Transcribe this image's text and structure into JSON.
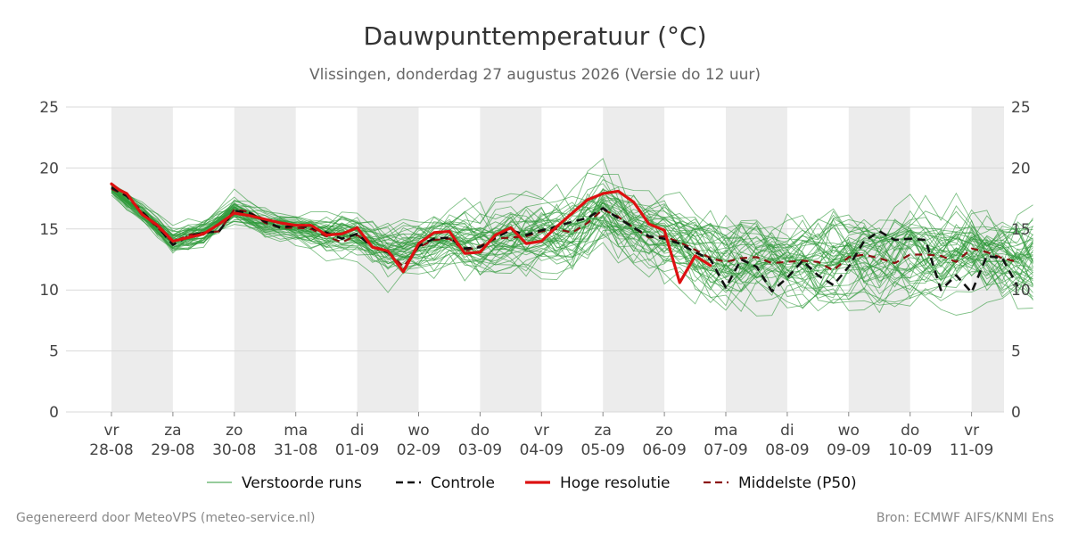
{
  "chart_data": {
    "type": "line",
    "title": "Dauwpunttemperatuur (°C)",
    "subtitle": "Vlissingen, donderdag 27 augustus 2026 (Versie do 12 uur)",
    "ylim": [
      0,
      25
    ],
    "yticks": [
      0,
      5,
      10,
      15,
      20,
      25
    ],
    "grid": true,
    "x_ticks": [
      {
        "day": "vr",
        "date": "28-08"
      },
      {
        "day": "za",
        "date": "29-08"
      },
      {
        "day": "zo",
        "date": "30-08"
      },
      {
        "day": "ma",
        "date": "31-08"
      },
      {
        "day": "di",
        "date": "01-09"
      },
      {
        "day": "wo",
        "date": "02-09"
      },
      {
        "day": "do",
        "date": "03-09"
      },
      {
        "day": "vr",
        "date": "04-09"
      },
      {
        "day": "za",
        "date": "05-09"
      },
      {
        "day": "zo",
        "date": "06-09"
      },
      {
        "day": "ma",
        "date": "07-09"
      },
      {
        "day": "di",
        "date": "08-09"
      },
      {
        "day": "wo",
        "date": "09-09"
      },
      {
        "day": "do",
        "date": "10-09"
      },
      {
        "day": "vr",
        "date": "11-09"
      }
    ],
    "legend_placement": "bottom",
    "legend": [
      {
        "label": "Verstoorde runs",
        "color": "#2e9a3a",
        "style": "thin"
      },
      {
        "label": "Controle",
        "color": "#111111",
        "style": "dashed"
      },
      {
        "label": "Hoge resolutie",
        "color": "#dd1111",
        "style": "solid"
      },
      {
        "label": "Middelste (P50)",
        "color": "#8b1010",
        "style": "dashed"
      }
    ],
    "series": [
      {
        "name": "Hoge resolutie",
        "color": "#dd1111",
        "points": [
          [
            0,
            18.7
          ],
          [
            0.125,
            18.2
          ],
          [
            0.25,
            17.9
          ],
          [
            0.5,
            16.2
          ],
          [
            0.75,
            15.3
          ],
          [
            1,
            14
          ],
          [
            1.25,
            14.3
          ],
          [
            1.5,
            14.6
          ],
          [
            1.75,
            15.4
          ],
          [
            2,
            16.3
          ],
          [
            2.25,
            16.1
          ],
          [
            2.5,
            15.8
          ],
          [
            2.75,
            15.5
          ],
          [
            3,
            15.3
          ],
          [
            3.25,
            15.3
          ],
          [
            3.5,
            14.5
          ],
          [
            3.75,
            14.6
          ],
          [
            4,
            15.1
          ],
          [
            4.25,
            13.5
          ],
          [
            4.5,
            13.2
          ],
          [
            4.75,
            11.5
          ],
          [
            5,
            13.8
          ],
          [
            5.25,
            14.7
          ],
          [
            5.5,
            14.8
          ],
          [
            5.75,
            13
          ],
          [
            6,
            13.1
          ],
          [
            6.25,
            14.5
          ],
          [
            6.5,
            15.1
          ],
          [
            6.75,
            13.8
          ],
          [
            7,
            14
          ],
          [
            7.25,
            15.2
          ],
          [
            7.5,
            16.3
          ],
          [
            7.75,
            17.4
          ],
          [
            8,
            17.9
          ],
          [
            8.25,
            18.1
          ],
          [
            8.5,
            17.2
          ],
          [
            8.75,
            15.4
          ],
          [
            9,
            14.9
          ],
          [
            9.25,
            10.6
          ],
          [
            9.5,
            12.8
          ],
          [
            9.75,
            12
          ]
        ]
      },
      {
        "name": "Controle",
        "color": "#111111",
        "points": [
          [
            0,
            18.4
          ],
          [
            0.25,
            17.7
          ],
          [
            0.5,
            16.4
          ],
          [
            0.75,
            15.2
          ],
          [
            1,
            13.7
          ],
          [
            1.25,
            14.4
          ],
          [
            1.5,
            14.7
          ],
          [
            1.75,
            14.8
          ],
          [
            2,
            16.5
          ],
          [
            2.25,
            16.3
          ],
          [
            2.5,
            15.6
          ],
          [
            2.75,
            15.1
          ],
          [
            3,
            15.3
          ],
          [
            3.25,
            15.1
          ],
          [
            3.5,
            14.7
          ],
          [
            3.75,
            14.2
          ],
          [
            4,
            14.6
          ],
          [
            4.25,
            13.5
          ],
          [
            4.5,
            13.1
          ],
          [
            4.75,
            11.6
          ],
          [
            5,
            13.6
          ],
          [
            5.25,
            14.2
          ],
          [
            5.5,
            14.3
          ],
          [
            5.75,
            13.4
          ],
          [
            6,
            13.5
          ],
          [
            6.25,
            14.3
          ],
          [
            6.5,
            14.9
          ],
          [
            6.75,
            14.5
          ],
          [
            7,
            14.9
          ],
          [
            7.25,
            15.2
          ],
          [
            7.5,
            15.6
          ],
          [
            7.75,
            15.9
          ],
          [
            8,
            16.7
          ],
          [
            8.25,
            15.9
          ],
          [
            8.5,
            15.1
          ],
          [
            8.75,
            14.4
          ],
          [
            9,
            14.2
          ],
          [
            9.25,
            13.8
          ],
          [
            9.5,
            13.1
          ],
          [
            9.75,
            12.5
          ],
          [
            10,
            10.2
          ],
          [
            10.25,
            12.5
          ],
          [
            10.5,
            11.9
          ],
          [
            10.75,
            9.9
          ],
          [
            11,
            11
          ],
          [
            11.25,
            12.4
          ],
          [
            11.5,
            11.2
          ],
          [
            11.75,
            10.4
          ],
          [
            12,
            11.9
          ],
          [
            12.25,
            14
          ],
          [
            12.5,
            14.8
          ],
          [
            12.75,
            14.1
          ],
          [
            13,
            14.2
          ],
          [
            13.25,
            14.1
          ],
          [
            13.5,
            10
          ],
          [
            13.75,
            11.2
          ],
          [
            14,
            9.8
          ],
          [
            14.25,
            12.8
          ],
          [
            14.5,
            12.6
          ],
          [
            14.75,
            10.3
          ]
        ]
      },
      {
        "name": "Middelste (P50)",
        "color": "#8b1010",
        "points": [
          [
            0,
            18.3
          ],
          [
            0.25,
            17.7
          ],
          [
            0.5,
            16.3
          ],
          [
            0.75,
            15.1
          ],
          [
            1,
            13.9
          ],
          [
            1.25,
            14.5
          ],
          [
            1.5,
            14.7
          ],
          [
            1.75,
            14.8
          ],
          [
            2,
            16.6
          ],
          [
            2.25,
            16.4
          ],
          [
            2.5,
            15.5
          ],
          [
            2.75,
            15.1
          ],
          [
            3,
            15.1
          ],
          [
            3.25,
            15
          ],
          [
            3.5,
            14.4
          ],
          [
            3.75,
            13.9
          ],
          [
            4,
            14.5
          ],
          [
            4.25,
            13.6
          ],
          [
            4.5,
            13.2
          ],
          [
            4.75,
            11.9
          ],
          [
            5,
            13.5
          ],
          [
            5.25,
            14.1
          ],
          [
            5.5,
            14.2
          ],
          [
            5.75,
            13.2
          ],
          [
            6,
            13.6
          ],
          [
            6.25,
            14.2
          ],
          [
            6.5,
            14.3
          ],
          [
            6.75,
            14.4
          ],
          [
            7,
            14.8
          ],
          [
            7.25,
            15
          ],
          [
            7.5,
            14.7
          ],
          [
            7.75,
            15.5
          ],
          [
            8,
            16.6
          ],
          [
            8.25,
            16
          ],
          [
            8.5,
            15.1
          ],
          [
            8.75,
            14.3
          ],
          [
            9,
            14.4
          ],
          [
            9.25,
            13.9
          ],
          [
            9.5,
            13.3
          ],
          [
            9.75,
            12.6
          ],
          [
            10,
            12.3
          ],
          [
            10.25,
            12.6
          ],
          [
            10.5,
            12.7
          ],
          [
            10.75,
            12.2
          ],
          [
            11,
            12.3
          ],
          [
            11.25,
            12.4
          ],
          [
            11.5,
            12.3
          ],
          [
            11.75,
            11.6
          ],
          [
            12,
            12.7
          ],
          [
            12.25,
            12.9
          ],
          [
            12.5,
            12.6
          ],
          [
            12.75,
            12.2
          ],
          [
            13,
            12.9
          ],
          [
            13.25,
            12.9
          ],
          [
            13.5,
            12.8
          ],
          [
            13.75,
            12.3
          ],
          [
            14,
            13.4
          ],
          [
            14.25,
            13.1
          ],
          [
            14.5,
            12.6
          ],
          [
            14.75,
            12.3
          ]
        ]
      }
    ],
    "ensemble": {
      "name": "Verstoorde runs",
      "color": "#2e9a3a",
      "count": 50,
      "anchor_x": [
        0,
        0.5,
        1,
        1.5,
        2,
        2.5,
        3,
        3.5,
        4,
        4.5,
        5,
        5.5,
        6,
        6.5,
        7,
        7.5,
        8,
        8.5,
        9,
        9.5,
        10,
        10.5,
        11,
        11.5,
        12,
        12.5,
        13,
        13.5,
        14,
        14.5,
        15
      ],
      "median": [
        18.3,
        16.3,
        13.9,
        14.7,
        16.6,
        15.5,
        15.1,
        14.4,
        14.5,
        13.2,
        13.5,
        14.2,
        13.6,
        14.3,
        14.8,
        14.7,
        16.6,
        15.1,
        14.4,
        13.3,
        12.3,
        12.7,
        12.3,
        12.3,
        12.7,
        12.6,
        12.9,
        12.8,
        13.4,
        12.6,
        12.3
      ],
      "spread": [
        0.5,
        0.8,
        1,
        1,
        1,
        1,
        1,
        1.4,
        1.7,
        2,
        2.1,
        2.3,
        2.6,
        2.8,
        3,
        3,
        3,
        3,
        3,
        3.1,
        3.2,
        3.3,
        3.3,
        3.4,
        3.4,
        3.5,
        3.5,
        3.6,
        3.6,
        3.7,
        3.8
      ]
    }
  },
  "footer": {
    "left": "Gegenereerd door MeteoVPS (meteo-service.nl)",
    "right": "Bron: ECMWF AIFS/KNMI Ens"
  }
}
